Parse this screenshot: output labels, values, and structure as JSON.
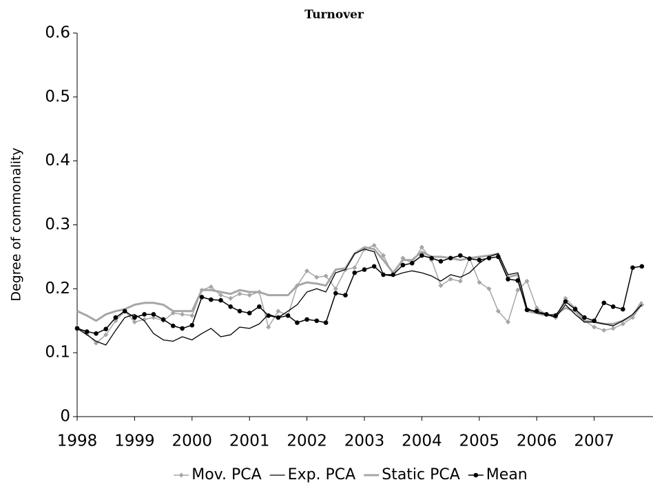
{
  "chart_data": {
    "type": "line",
    "title": "Turnover",
    "y_label": "Degree of commonality",
    "x": [
      1998,
      1998.17,
      1998.33,
      1998.5,
      1998.67,
      1998.83,
      1999,
      1999.17,
      1999.33,
      1999.5,
      1999.67,
      1999.83,
      2000,
      2000.17,
      2000.33,
      2000.5,
      2000.67,
      2000.83,
      2001,
      2001.17,
      2001.33,
      2001.5,
      2001.67,
      2001.83,
      2002,
      2002.17,
      2002.33,
      2002.5,
      2002.67,
      2002.83,
      2003,
      2003.17,
      2003.33,
      2003.5,
      2003.67,
      2003.83,
      2004,
      2004.17,
      2004.33,
      2004.5,
      2004.67,
      2004.83,
      2005,
      2005.17,
      2005.33,
      2005.5,
      2005.67,
      2005.83,
      2006,
      2006.17,
      2006.33,
      2006.5,
      2006.67,
      2006.83,
      2007,
      2007.17,
      2007.33,
      2007.5,
      2007.67,
      2007.83
    ],
    "series": [
      {
        "name": "Mov. PCA",
        "color": "#a6a6a6",
        "marker": "diamond",
        "line_width": 1.5,
        "values": [
          0.14,
          0.13,
          0.115,
          0.128,
          0.15,
          0.165,
          0.148,
          0.152,
          0.155,
          0.15,
          0.162,
          0.16,
          0.158,
          0.198,
          0.203,
          0.19,
          0.185,
          0.192,
          0.19,
          0.195,
          0.14,
          0.165,
          0.158,
          0.205,
          0.228,
          0.218,
          0.22,
          0.2,
          0.23,
          0.233,
          0.262,
          0.268,
          0.252,
          0.222,
          0.248,
          0.24,
          0.265,
          0.245,
          0.205,
          0.215,
          0.212,
          0.248,
          0.21,
          0.2,
          0.165,
          0.148,
          0.198,
          0.212,
          0.17,
          0.16,
          0.155,
          0.185,
          0.17,
          0.15,
          0.14,
          0.135,
          0.138,
          0.145,
          0.155,
          0.175
        ]
      },
      {
        "name": "Exp. PCA",
        "color": "#000000",
        "marker": "none",
        "line_width": 1.3,
        "values": [
          0.138,
          0.128,
          0.118,
          0.112,
          0.135,
          0.155,
          0.16,
          0.15,
          0.13,
          0.12,
          0.118,
          0.125,
          0.12,
          0.13,
          0.138,
          0.125,
          0.128,
          0.14,
          0.138,
          0.145,
          0.16,
          0.155,
          0.165,
          0.175,
          0.195,
          0.2,
          0.195,
          0.225,
          0.23,
          0.255,
          0.262,
          0.258,
          0.222,
          0.22,
          0.225,
          0.228,
          0.225,
          0.22,
          0.212,
          0.222,
          0.218,
          0.225,
          0.24,
          0.25,
          0.255,
          0.222,
          0.225,
          0.17,
          0.162,
          0.16,
          0.155,
          0.175,
          0.16,
          0.148,
          0.148,
          0.145,
          0.142,
          0.15,
          0.16,
          0.175
        ]
      },
      {
        "name": "Static PCA",
        "color": "#a6a6a6",
        "marker": "none",
        "line_width": 3,
        "values": [
          0.165,
          0.158,
          0.15,
          0.16,
          0.165,
          0.168,
          0.175,
          0.178,
          0.178,
          0.175,
          0.165,
          0.165,
          0.165,
          0.198,
          0.198,
          0.195,
          0.192,
          0.198,
          0.195,
          0.195,
          0.19,
          0.19,
          0.19,
          0.205,
          0.21,
          0.208,
          0.205,
          0.23,
          0.232,
          0.255,
          0.265,
          0.262,
          0.245,
          0.225,
          0.245,
          0.245,
          0.258,
          0.25,
          0.25,
          0.248,
          0.245,
          0.248,
          0.25,
          0.252,
          0.255,
          0.218,
          0.222,
          0.165,
          0.162,
          0.158,
          0.16,
          0.17,
          0.165,
          0.15,
          0.148,
          0.145,
          0.145,
          0.15,
          0.158,
          0.18
        ]
      },
      {
        "name": "Mean",
        "color": "#000000",
        "marker": "circle",
        "line_width": 1.5,
        "values": [
          0.138,
          0.133,
          0.13,
          0.137,
          0.155,
          0.165,
          0.155,
          0.16,
          0.16,
          0.152,
          0.142,
          0.138,
          0.143,
          0.187,
          0.183,
          0.182,
          0.172,
          0.165,
          0.162,
          0.172,
          0.158,
          0.155,
          0.158,
          0.147,
          0.152,
          0.15,
          0.147,
          0.193,
          0.19,
          0.225,
          0.23,
          0.235,
          0.222,
          0.222,
          0.237,
          0.24,
          0.252,
          0.248,
          0.243,
          0.248,
          0.252,
          0.247,
          0.245,
          0.248,
          0.25,
          0.215,
          0.213,
          0.167,
          0.165,
          0.16,
          0.158,
          0.18,
          0.168,
          0.155,
          0.15,
          0.178,
          0.172,
          0.168,
          0.233,
          0.235
        ]
      }
    ],
    "xlim": [
      1998,
      2008
    ],
    "xticks": [
      1998,
      1999,
      2000,
      2001,
      2002,
      2003,
      2004,
      2005,
      2006,
      2007
    ],
    "ylim": [
      0,
      0.6
    ],
    "yticks": [
      0,
      0.1,
      0.2,
      0.3,
      0.4,
      0.5,
      0.6
    ],
    "grid": false,
    "legend": "bottom"
  }
}
